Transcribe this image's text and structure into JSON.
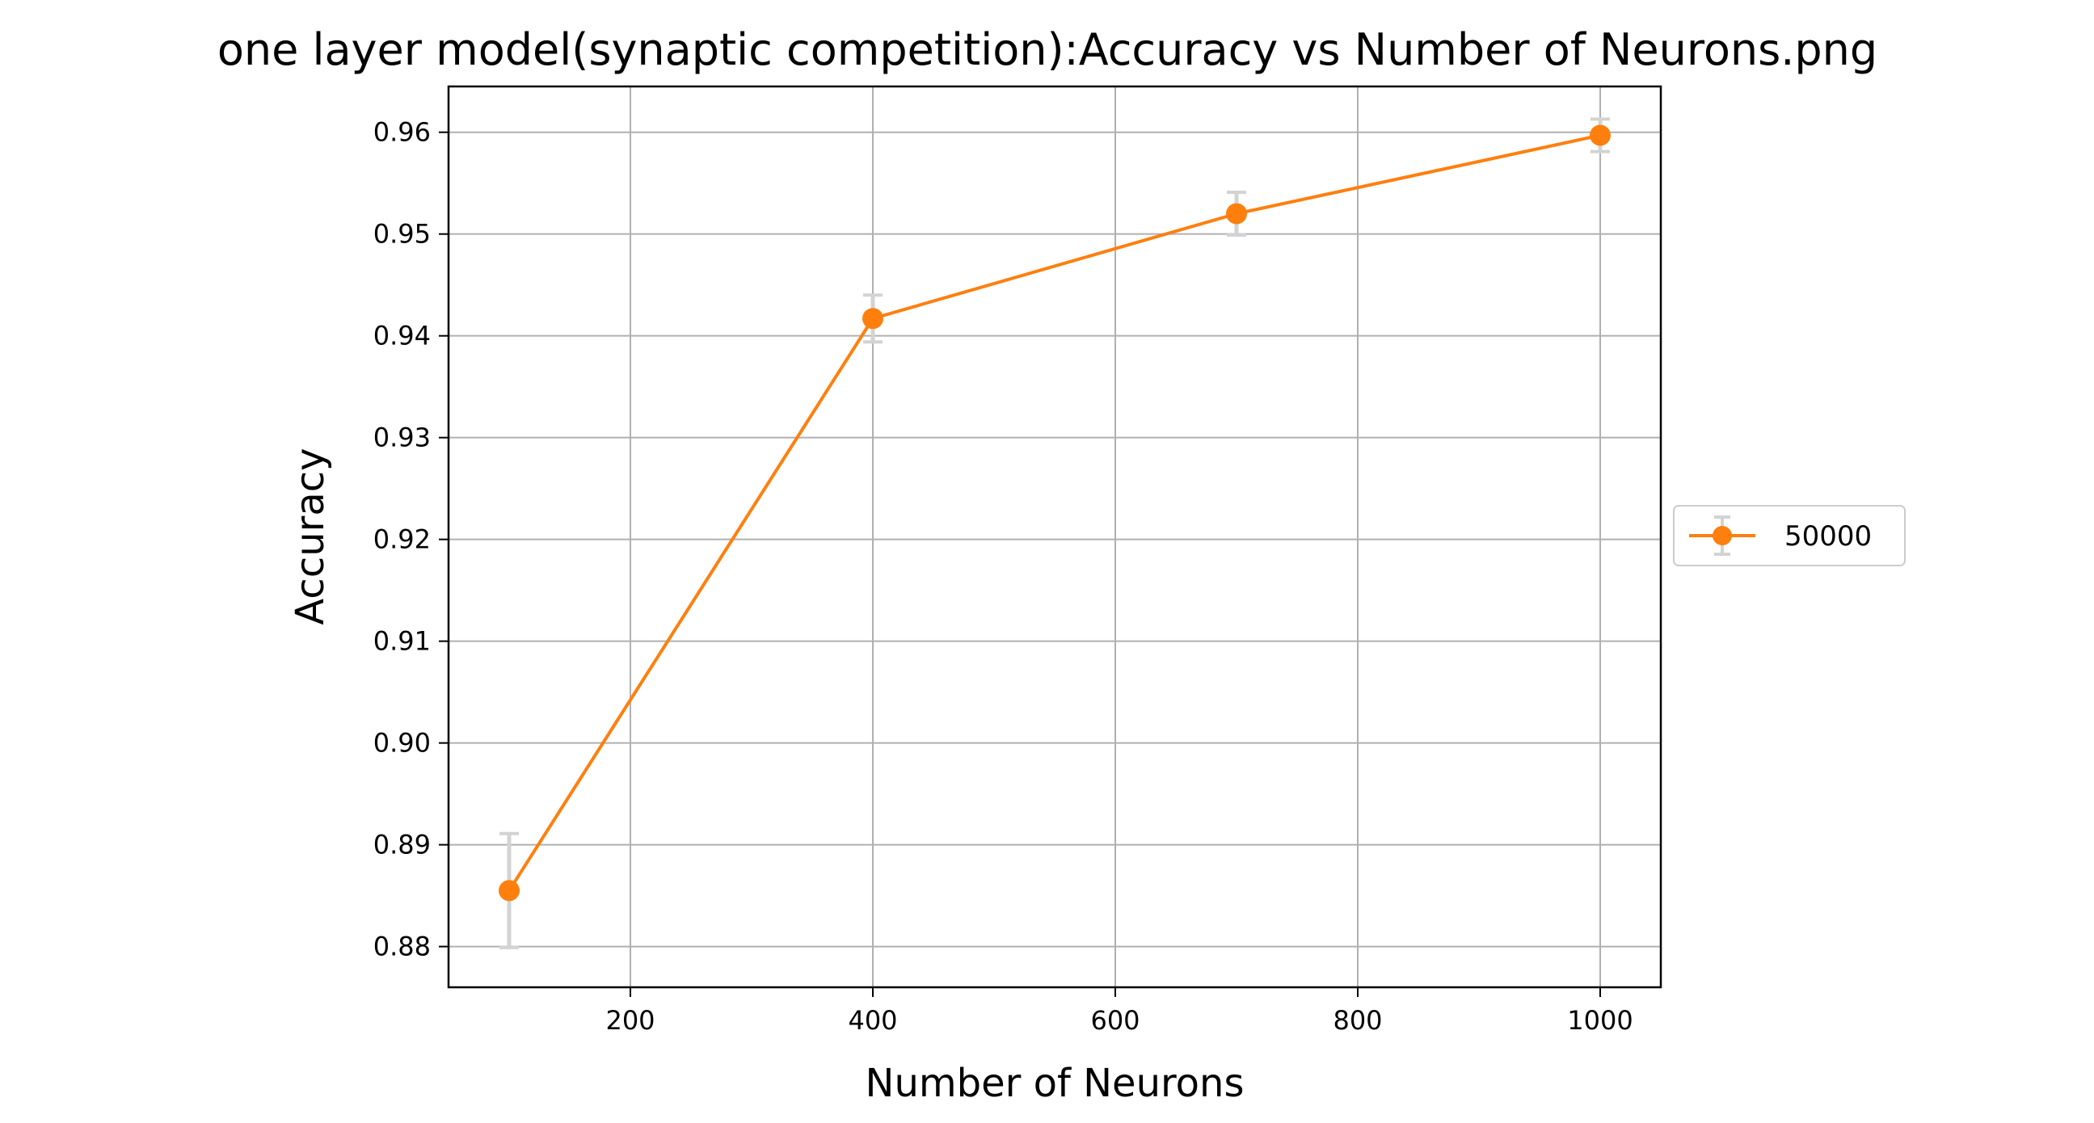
{
  "chart_data": {
    "type": "line",
    "title": "one layer model(synaptic competition):Accuracy vs Number of Neurons.png",
    "xlabel": "Number of Neurons",
    "ylabel": "Accuracy",
    "xlim": [
      50,
      1050
    ],
    "ylim": [
      0.876,
      0.9645
    ],
    "xticks": [
      200,
      400,
      600,
      800,
      1000
    ],
    "xtick_labels": [
      "200",
      "400",
      "600",
      "800",
      "1000"
    ],
    "yticks": [
      0.88,
      0.89,
      0.9,
      0.91,
      0.92,
      0.93,
      0.94,
      0.95,
      0.96
    ],
    "ytick_labels": [
      "0.88",
      "0.89",
      "0.90",
      "0.91",
      "0.92",
      "0.93",
      "0.94",
      "0.95",
      "0.96"
    ],
    "grid": true,
    "legend_position": "center-right-outside",
    "series": [
      {
        "name": "50000",
        "color": "#ff7f0e",
        "errorbar_color": "#d3d3d3",
        "marker": "circle",
        "x": [
          100,
          400,
          700,
          1000
        ],
        "y": [
          0.8855,
          0.9417,
          0.952,
          0.9597
        ],
        "yerr": [
          0.0056,
          0.0023,
          0.0021,
          0.0016
        ]
      }
    ]
  }
}
